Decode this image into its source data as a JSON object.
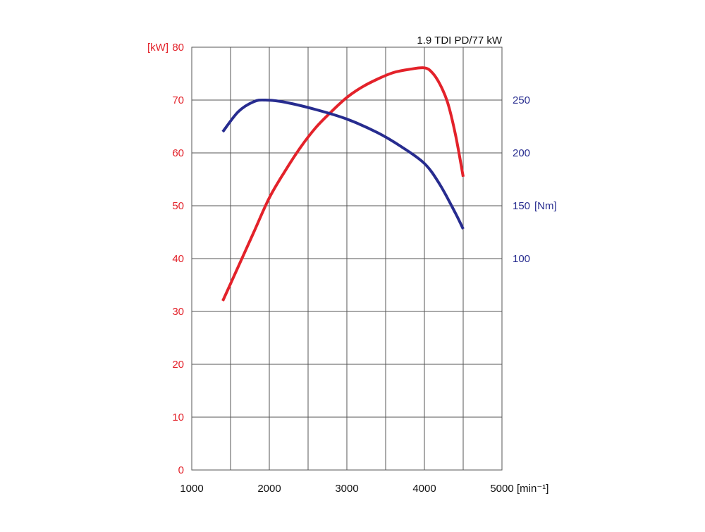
{
  "chart_data": {
    "type": "line",
    "title": "1.9 TDI PD/77 kW",
    "x": {
      "ticks": [
        1000,
        2000,
        3000,
        4000,
        5000
      ],
      "tick_labels": [
        "1000",
        "2000",
        "3000",
        "4000",
        "5000"
      ],
      "unit_label": "[min⁻¹]",
      "range": [
        1000,
        5000
      ],
      "gridlines": [
        1000,
        1500,
        2000,
        2500,
        3000,
        3500,
        4000,
        4500,
        5000
      ]
    },
    "y_left": {
      "ticks": [
        0,
        10,
        20,
        30,
        40,
        50,
        60,
        70,
        80
      ],
      "tick_labels": [
        "0",
        "10",
        "20",
        "30",
        "40",
        "50",
        "60",
        "70",
        "80"
      ],
      "unit_label": "[kW]",
      "range": [
        0,
        80
      ],
      "color": "#e3222a"
    },
    "y_right": {
      "ticks": [
        100,
        150,
        200,
        250
      ],
      "tick_labels": [
        "100",
        "150",
        "200",
        "250"
      ],
      "unit_label": "[Nm]",
      "range": [
        -100,
        300
      ],
      "color": "#272c8f"
    },
    "grid": true,
    "series": [
      {
        "axis": "left",
        "color": "#e3222a",
        "points": [
          [
            1400,
            32
          ],
          [
            1600,
            38.5
          ],
          [
            1800,
            45
          ],
          [
            2000,
            51.5
          ],
          [
            2200,
            56.5
          ],
          [
            2400,
            61
          ],
          [
            2600,
            64.8
          ],
          [
            2800,
            67.8
          ],
          [
            3000,
            70.5
          ],
          [
            3200,
            72.5
          ],
          [
            3400,
            74
          ],
          [
            3600,
            75.2
          ],
          [
            3800,
            75.8
          ],
          [
            4000,
            76.1
          ],
          [
            4100,
            75.2
          ],
          [
            4200,
            73
          ],
          [
            4300,
            69.5
          ],
          [
            4400,
            63.5
          ],
          [
            4500,
            55.5
          ]
        ]
      },
      {
        "axis": "right",
        "color": "#272c8f",
        "points": [
          [
            1400,
            220
          ],
          [
            1600,
            239
          ],
          [
            1800,
            248.5
          ],
          [
            1950,
            250
          ],
          [
            2200,
            248
          ],
          [
            2600,
            241
          ],
          [
            3000,
            232
          ],
          [
            3400,
            219
          ],
          [
            3700,
            206
          ],
          [
            4000,
            190
          ],
          [
            4200,
            170
          ],
          [
            4400,
            143
          ],
          [
            4500,
            128
          ]
        ]
      }
    ]
  }
}
